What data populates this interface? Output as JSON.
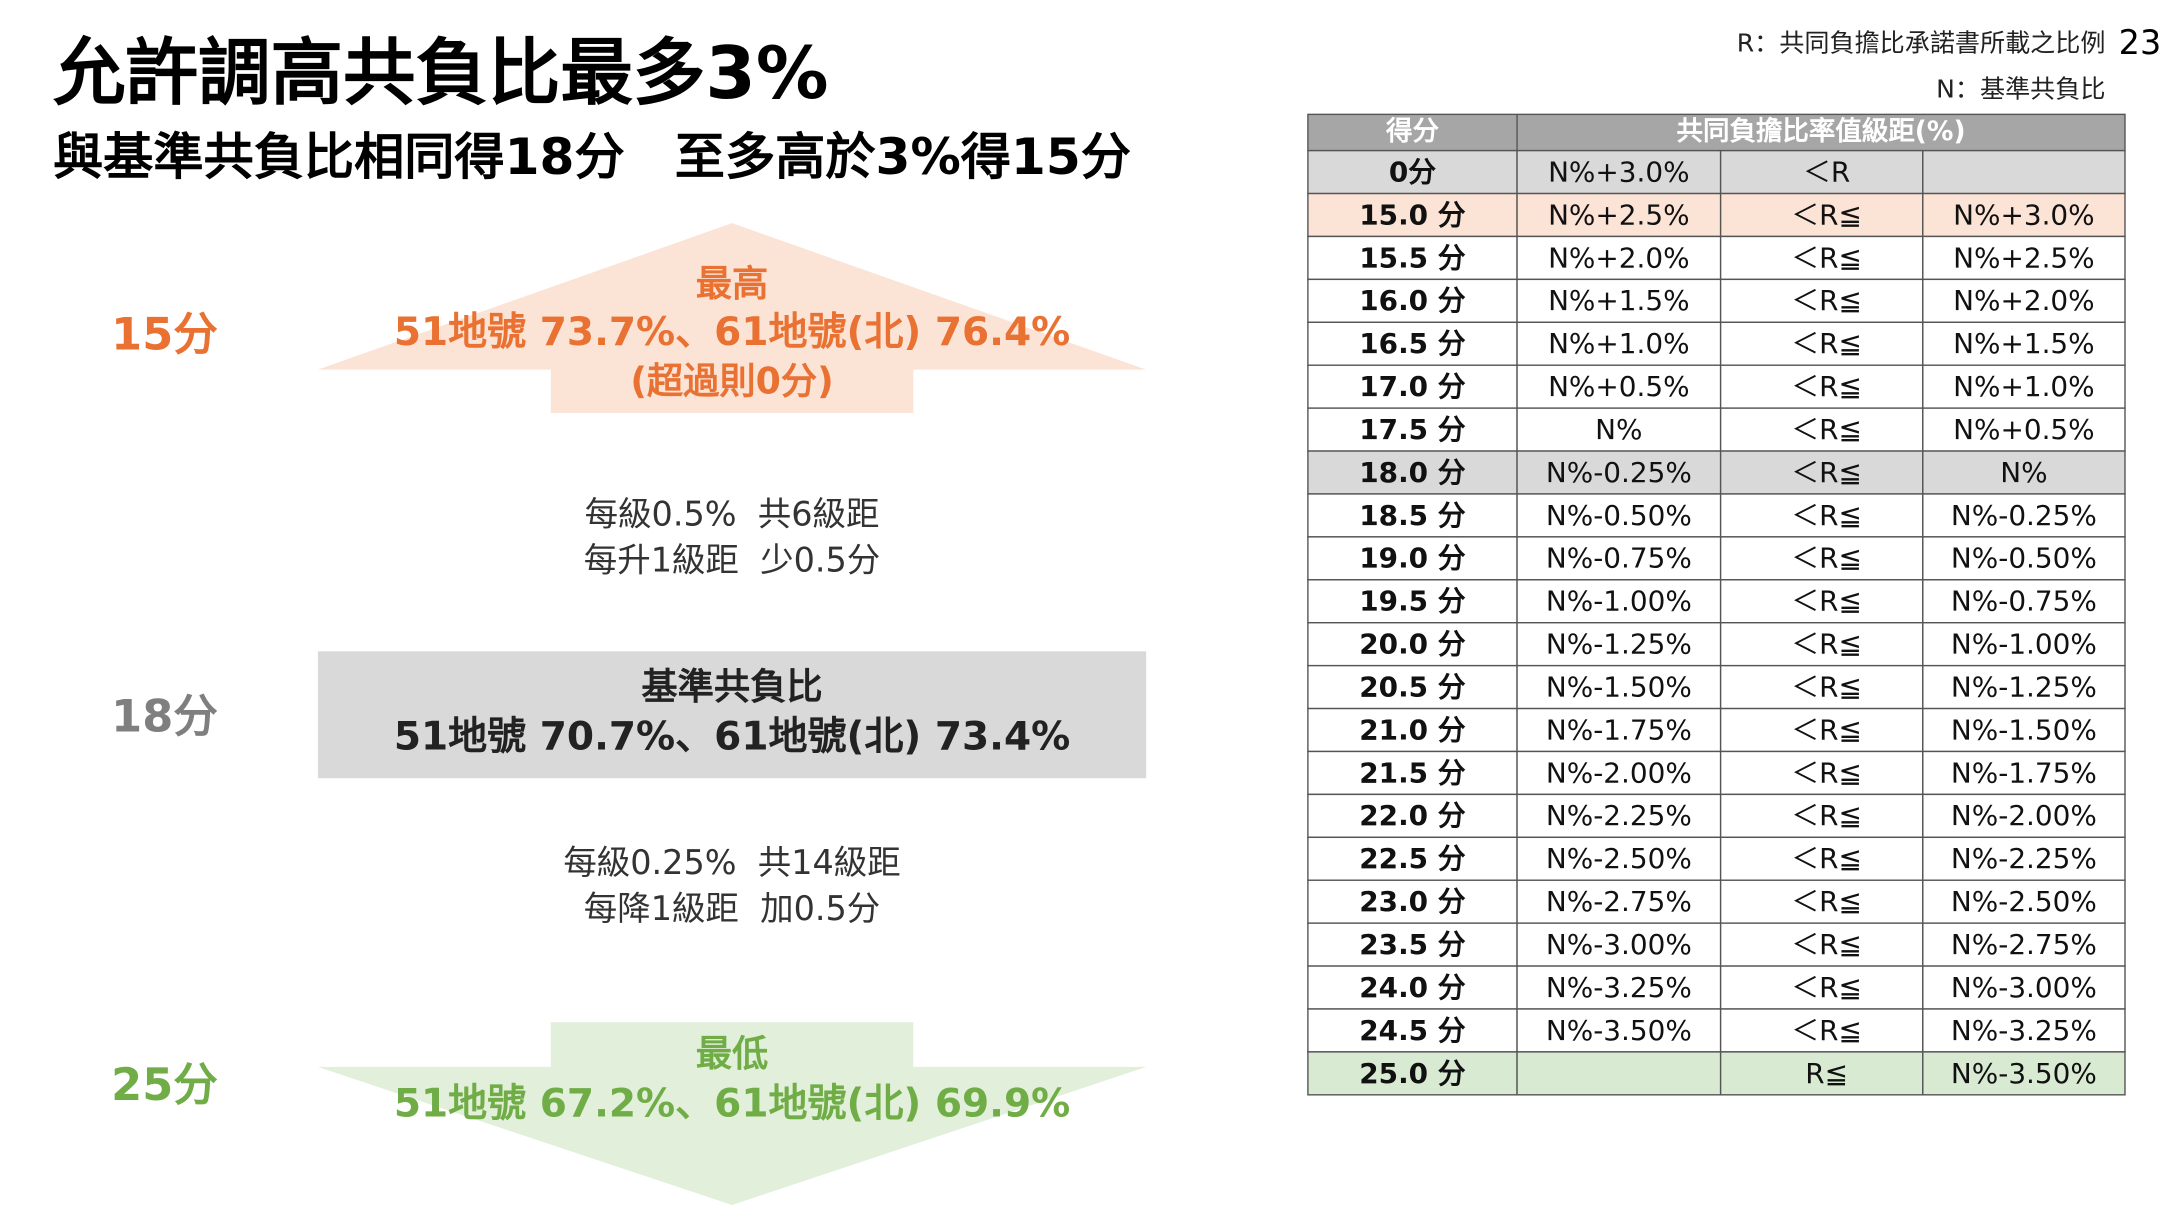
{
  "header": {
    "title": "允許調高共負比最多3%",
    "subtitle": "與基準共負比相同得18分　至多高於3%得15分",
    "page_number": "23",
    "notes": [
      "R：共同負擔比承諾書所載之比例",
      "N：基準共負比"
    ]
  },
  "left": {
    "top": {
      "score": "15分",
      "heading": "最高",
      "detail": "51地號 73.7%、61地號(北) 76.4%",
      "note": "(超過則0分)"
    },
    "step_up": [
      "每級0.5%  共6級距",
      "每升1級距  少0.5分"
    ],
    "middle": {
      "score": "18分",
      "heading": "基準共負比",
      "detail": "51地號 70.7%、61地號(北) 73.4%"
    },
    "step_down": [
      "每級0.25%  共14級距",
      "每降1級距  加0.5分"
    ],
    "bottom": {
      "score": "25分",
      "heading": "最低",
      "detail": "51地號 67.2%、61地號(北) 69.9%"
    }
  },
  "table": {
    "header": [
      "得分",
      "共同負擔比率值級距(%)"
    ],
    "rows": [
      [
        "0分",
        "N%+3.0%",
        "＜R",
        null
      ],
      [
        "15.0 分",
        "N%+2.5%",
        "＜R≦",
        "N%+3.0%"
      ],
      [
        "15.5 分",
        "N%+2.0%",
        "＜R≦",
        "N%+2.5%"
      ],
      [
        "16.0 分",
        "N%+1.5%",
        "＜R≦",
        "N%+2.0%"
      ],
      [
        "16.5 分",
        "N%+1.0%",
        "＜R≦",
        "N%+1.5%"
      ],
      [
        "17.0 分",
        "N%+0.5%",
        "＜R≦",
        "N%+1.0%"
      ],
      [
        "17.5 分",
        "N%",
        "＜R≦",
        "N%+0.5%"
      ],
      [
        "18.0 分",
        "N%-0.25%",
        "＜R≦",
        "N%"
      ],
      [
        "18.5 分",
        "N%-0.50%",
        "＜R≦",
        "N%-0.25%"
      ],
      [
        "19.0 分",
        "N%-0.75%",
        "＜R≦",
        "N%-0.50%"
      ],
      [
        "19.5 分",
        "N%-1.00%",
        "＜R≦",
        "N%-0.75%"
      ],
      [
        "20.0 分",
        "N%-1.25%",
        "＜R≦",
        "N%-1.00%"
      ],
      [
        "20.5 分",
        "N%-1.50%",
        "＜R≦",
        "N%-1.25%"
      ],
      [
        "21.0 分",
        "N%-1.75%",
        "＜R≦",
        "N%-1.50%"
      ],
      [
        "21.5 分",
        "N%-2.00%",
        "＜R≦",
        "N%-1.75%"
      ],
      [
        "22.0 分",
        "N%-2.25%",
        "＜R≦",
        "N%-2.00%"
      ],
      [
        "22.5 分",
        "N%-2.50%",
        "＜R≦",
        "N%-2.25%"
      ],
      [
        "23.0 分",
        "N%-2.75%",
        "＜R≦",
        "N%-2.50%"
      ],
      [
        "23.5 分",
        "N%-3.00%",
        "＜R≦",
        "N%-2.75%"
      ],
      [
        "24.0 分",
        "N%-3.25%",
        "＜R≦",
        "N%-3.00%"
      ],
      [
        "24.5 分",
        "N%-3.50%",
        "＜R≦",
        "N%-3.25%"
      ],
      [
        "25.0 分",
        null,
        "R≦",
        "N%-3.50%"
      ]
    ]
  }
}
